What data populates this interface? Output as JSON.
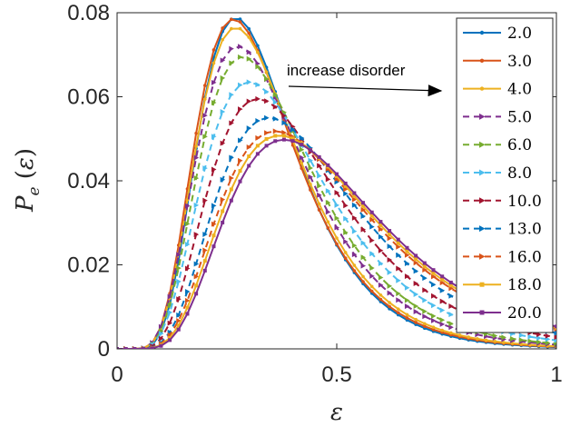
{
  "chart_data": {
    "type": "line",
    "xlabel": "ε",
    "ylabel": "P_e(ε)",
    "xlim": [
      0,
      1
    ],
    "ylim": [
      0,
      0.08
    ],
    "xticks": [
      0,
      0.5,
      1
    ],
    "xtick_labels": [
      "0",
      "0.5",
      "1"
    ],
    "yticks": [
      0,
      0.02,
      0.04,
      0.06,
      0.08
    ],
    "ytick_labels": [
      "0",
      "0.02",
      "0.04",
      "0.06",
      "0.08"
    ],
    "grid": false,
    "legend_position": "top-right",
    "annotation": {
      "text": "increase disorder",
      "arrow": "right"
    },
    "series": [
      {
        "name": "2.0",
        "color": "#0072BD",
        "dash": "solid",
        "marker": "dot",
        "peak_x": 0.27,
        "peak_y": 0.0788,
        "width": 0.115
      },
      {
        "name": "3.0",
        "color": "#D95319",
        "dash": "solid",
        "marker": "dot",
        "peak_x": 0.265,
        "peak_y": 0.0785,
        "width": 0.117
      },
      {
        "name": "4.0",
        "color": "#EDB120",
        "dash": "solid",
        "marker": "dot",
        "peak_x": 0.27,
        "peak_y": 0.0765,
        "width": 0.12
      },
      {
        "name": "5.0",
        "color": "#7E2F8E",
        "dash": "dashed",
        "marker": "triangle",
        "peak_x": 0.275,
        "peak_y": 0.072,
        "width": 0.128
      },
      {
        "name": "6.0",
        "color": "#77AC30",
        "dash": "dashed",
        "marker": "triangle",
        "peak_x": 0.285,
        "peak_y": 0.0695,
        "width": 0.133
      },
      {
        "name": "8.0",
        "color": "#4DBEEE",
        "dash": "dashed",
        "marker": "triangle",
        "peak_x": 0.3,
        "peak_y": 0.0635,
        "width": 0.145
      },
      {
        "name": "10.0",
        "color": "#A2142F",
        "dash": "dashed",
        "marker": "triangle",
        "peak_x": 0.32,
        "peak_y": 0.0595,
        "width": 0.155
      },
      {
        "name": "13.0",
        "color": "#0072BD",
        "dash": "dashed",
        "marker": "triangle",
        "peak_x": 0.345,
        "peak_y": 0.055,
        "width": 0.167
      },
      {
        "name": "16.0",
        "color": "#D95319",
        "dash": "dashed",
        "marker": "triangle",
        "peak_x": 0.36,
        "peak_y": 0.0518,
        "width": 0.177
      },
      {
        "name": "18.0",
        "color": "#EDB120",
        "dash": "solid",
        "marker": "square",
        "peak_x": 0.37,
        "peak_y": 0.0508,
        "width": 0.18
      },
      {
        "name": "20.0",
        "color": "#7E2F8E",
        "dash": "solid",
        "marker": "square",
        "peak_x": 0.38,
        "peak_y": 0.0498,
        "width": 0.183
      }
    ]
  }
}
